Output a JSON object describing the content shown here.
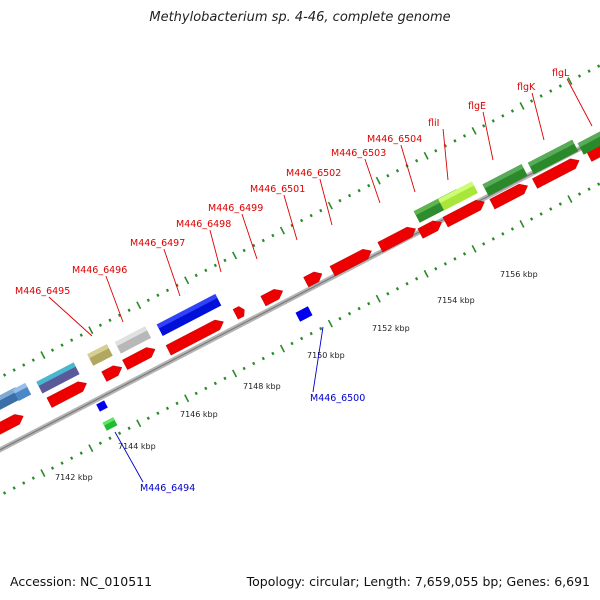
{
  "title": "Methylobacterium sp. 4-46, complete genome",
  "footer": {
    "accession": "Accession: NC_010511",
    "stats": "Topology: circular; Length: 7,659,055 bp; Genes: 6,691"
  },
  "colors": {
    "cds": "#ee0000",
    "backbone": "#9a9a9a",
    "minus_cog": "#0000ee",
    "tick": "#2a8a2a",
    "label_red": "#dd0000",
    "label_blue": "#0000cc"
  },
  "scale": {
    "unit": "kbp",
    "ticks": [
      {
        "pos": 7142,
        "label": "7142 kbp"
      },
      {
        "pos": 7144,
        "label": "7144 kbp"
      },
      {
        "pos": 7146,
        "label": "7146 kbp"
      },
      {
        "pos": 7148,
        "label": "7148 kbp"
      },
      {
        "pos": 7150,
        "label": "7150 kbp"
      },
      {
        "pos": 7152,
        "label": "7152 kbp"
      },
      {
        "pos": 7154,
        "label": "7154 kbp"
      },
      {
        "pos": 7156,
        "label": "7156 kbp"
      }
    ]
  },
  "gene_labels_plus": [
    "M446_6495",
    "M446_6496",
    "M446_6497",
    "M446_6498",
    "M446_6499",
    "M446_6501",
    "M446_6502",
    "M446_6503",
    "M446_6504",
    "fliI",
    "flgE",
    "flgK",
    "flgL"
  ],
  "gene_labels_minus": [
    "M446_6494",
    "M446_6500"
  ]
}
